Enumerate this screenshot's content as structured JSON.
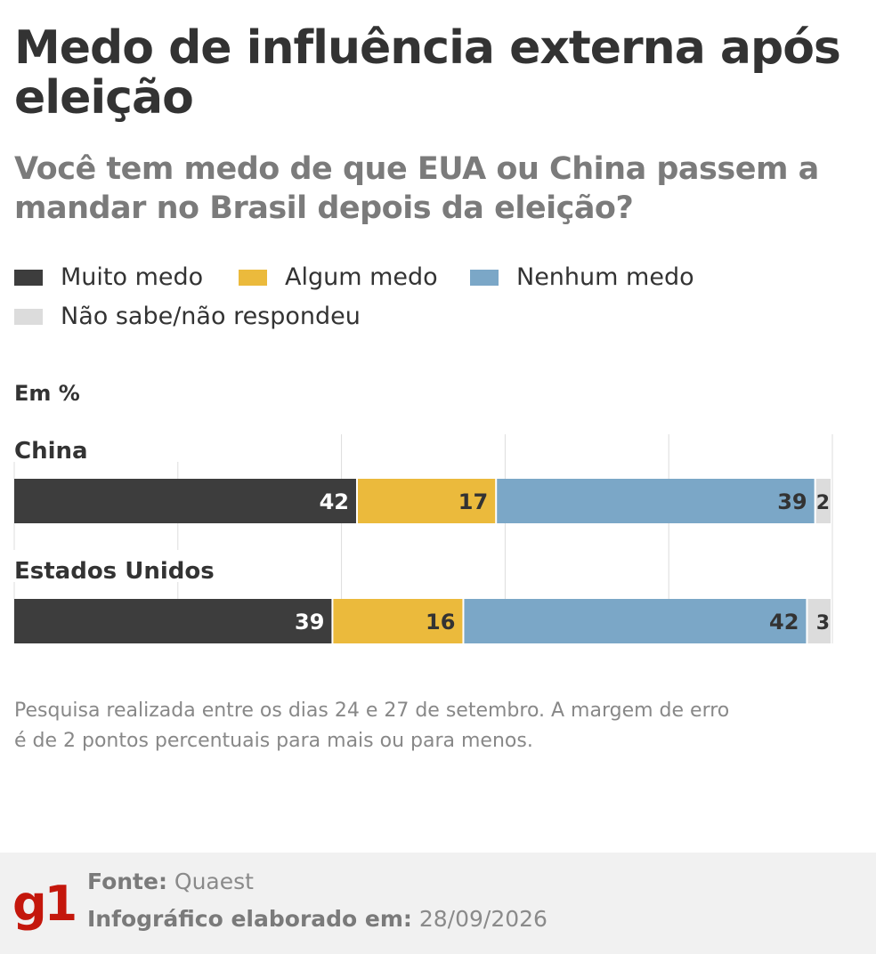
{
  "title": "Medo de influência externa após eleição",
  "subtitle": "Você tem medo de que EUA ou China passem a mandar no Brasil depois da eleição?",
  "legend": [
    {
      "label": "Muito medo",
      "color": "#3d3d3d"
    },
    {
      "label": "Algum medo",
      "color": "#ebba3c"
    },
    {
      "label": "Nenhum medo",
      "color": "#7ba7c7"
    },
    {
      "label": "Não sabe/não respondeu",
      "color": "#dcdcdc"
    }
  ],
  "unit_label": "Em %",
  "chart_data": {
    "type": "bar",
    "stacked": true,
    "orientation": "horizontal",
    "categories": [
      "China",
      "Estados Unidos"
    ],
    "series": [
      {
        "name": "Muito medo",
        "color": "#3d3d3d",
        "values": [
          42,
          39
        ]
      },
      {
        "name": "Algum medo",
        "color": "#ebba3c",
        "values": [
          17,
          16
        ]
      },
      {
        "name": "Nenhum medo",
        "color": "#7ba7c7",
        "values": [
          39,
          42
        ]
      },
      {
        "name": "Não sabe/não respondeu",
        "color": "#dcdcdc",
        "values": [
          2,
          3
        ]
      }
    ],
    "xlim": [
      0,
      100
    ],
    "grid": true
  },
  "note": "Pesquisa realizada entre os dias 24 e 27 de setembro. A margem de erro é de 2 pontos percentuais para mais ou para menos.",
  "footer": {
    "logo": "g1",
    "source_label": "Fonte:",
    "source_value": "Quaest",
    "made_label": "Infográfico elaborado em:",
    "made_value": "28/09/2026"
  }
}
